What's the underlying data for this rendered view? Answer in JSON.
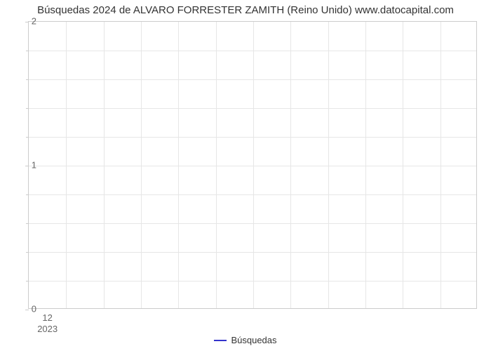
{
  "chart": {
    "type": "line",
    "title": "Búsquedas 2024 de ALVARO FORRESTER ZAMITH (Reino Unido) www.datocapital.com",
    "title_fontsize": 15,
    "title_color": "#333333",
    "background_color": "#ffffff",
    "plot_border_color": "#cccccc",
    "grid_color": "#e6e6e6",
    "axis_label_color": "#666666",
    "axis_label_fontsize": 13,
    "xlim": [
      0,
      12
    ],
    "ylim": [
      0,
      2
    ],
    "y_major_ticks": [
      0,
      1,
      2
    ],
    "y_minor_count_between": 4,
    "x_major_ticks_count": 12,
    "x_first_tick_label": "12",
    "x_first_tick_sublabel": "2023",
    "series": [
      {
        "name": "Búsquedas",
        "color": "#3333cc",
        "line_width": 2,
        "data": []
      }
    ],
    "legend": {
      "position": "bottom-center",
      "items": [
        {
          "label": "Búsquedas",
          "color": "#3333cc"
        }
      ]
    }
  }
}
